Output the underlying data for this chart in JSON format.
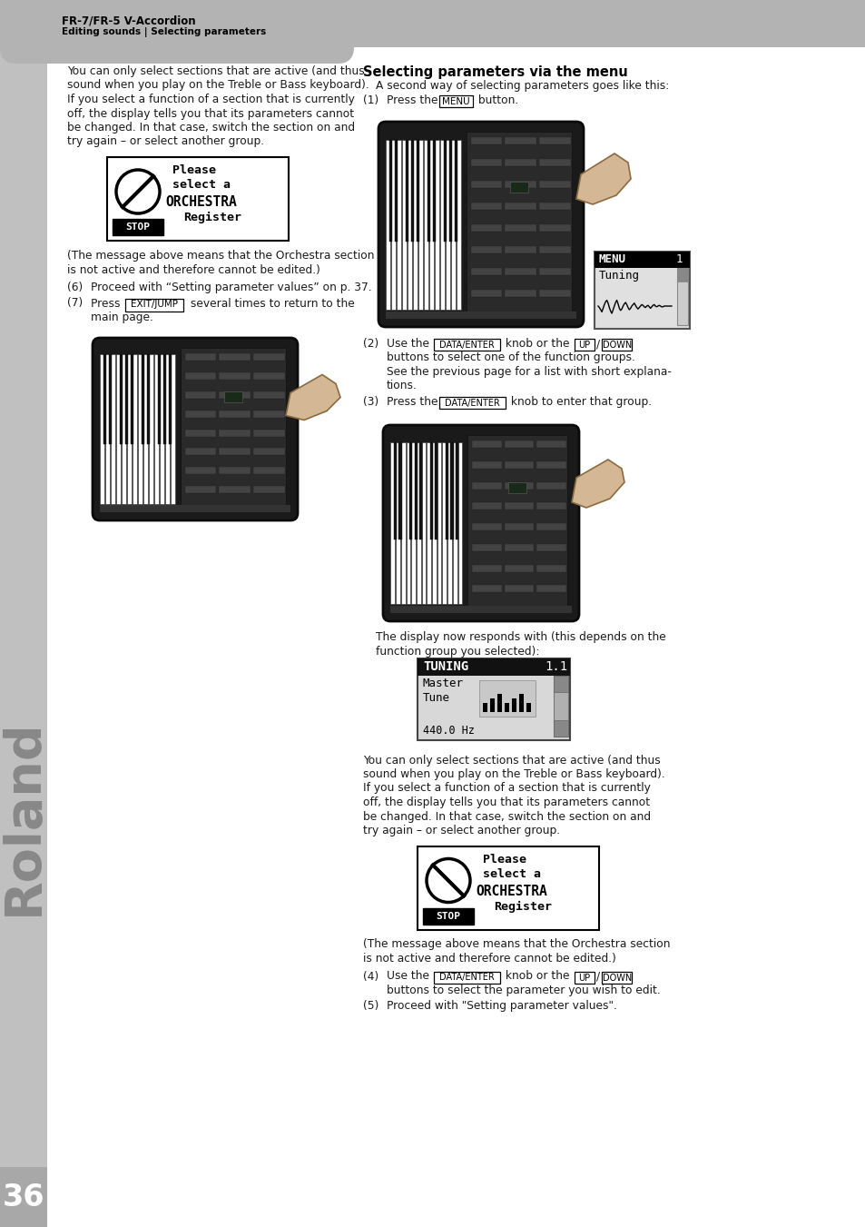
{
  "page_bg": "#ffffff",
  "header_bg": "#b3b3b3",
  "body_text_color": "#1a1a1a",
  "header_text_line1": "FR-7/FR-5 V-Accordion",
  "header_text_line2": "Editing sounds | Selecting parameters",
  "page_number": "36",
  "section_title": "Selecting parameters via the menu",
  "section_subtitle": "A second way of selecting parameters goes like this:",
  "roland_color": "#b0b0b0"
}
